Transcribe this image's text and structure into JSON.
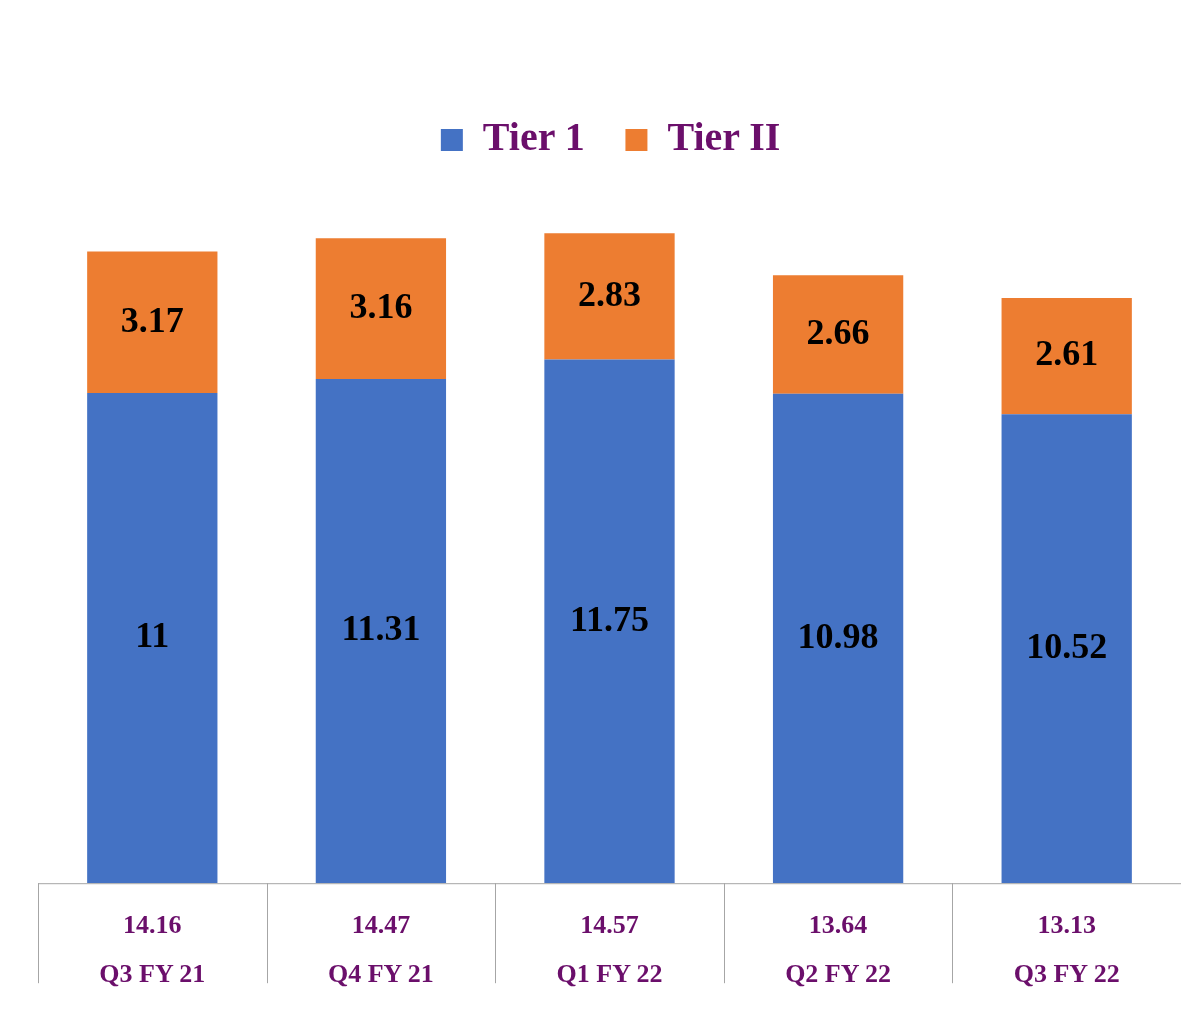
{
  "chart_data": {
    "type": "bar",
    "stacked": true,
    "categories": [
      "Q3 FY 21",
      "Q4 FY 21",
      "Q1 FY 22",
      "Q2 FY 22",
      "Q3 FY 22"
    ],
    "series": [
      {
        "name": "Tier 1",
        "color": "#4472c4",
        "values": [
          11,
          11.31,
          11.75,
          10.98,
          10.52
        ]
      },
      {
        "name": "Tier II",
        "color": "#ed7d31",
        "values": [
          3.17,
          3.16,
          2.83,
          2.66,
          2.61
        ]
      }
    ],
    "data_labels": true,
    "totals": [
      "14.16",
      "14.47",
      "14.57",
      "13.64",
      "13.13"
    ],
    "legend": "top"
  }
}
